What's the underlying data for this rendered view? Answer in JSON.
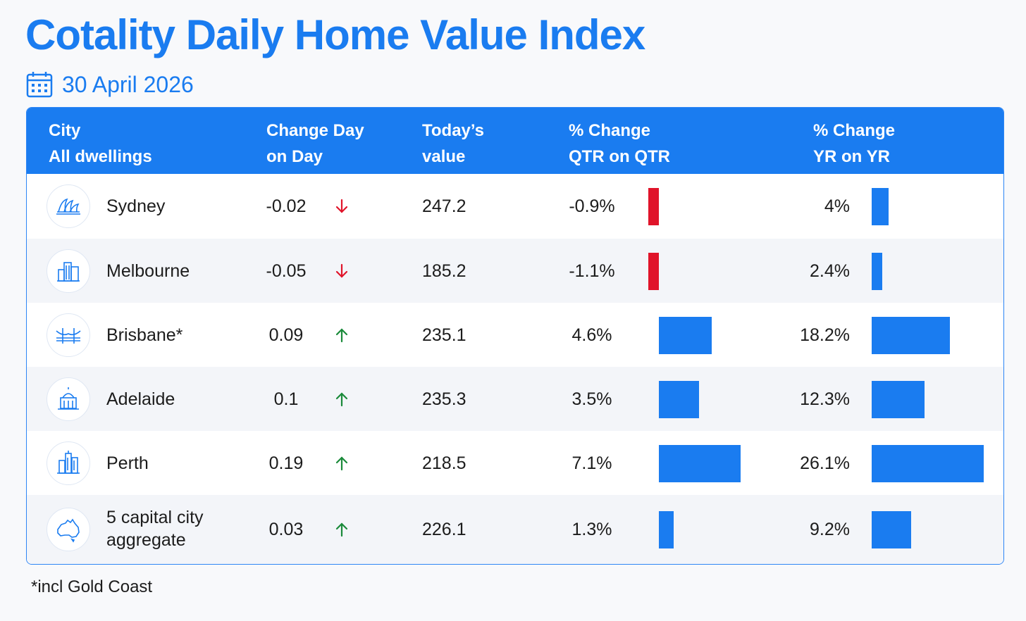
{
  "title": "Cotality Daily Home Value Index",
  "date": "30 April 2026",
  "headers": {
    "city": [
      "City",
      "All dwellings"
    ],
    "dod": [
      "Change Day",
      "on Day"
    ],
    "value": [
      "Today’s",
      "value"
    ],
    "qtr": [
      "% Change",
      "QTR on QTR"
    ],
    "yr": [
      "% Change",
      "YR on YR"
    ]
  },
  "rows": [
    {
      "city": "Sydney",
      "dod": "-0.02",
      "dir": "down",
      "value": "247.2",
      "qtr": "-0.9%",
      "yr": "4%",
      "icon": "opera-house-icon"
    },
    {
      "city": "Melbourne",
      "dod": "-0.05",
      "dir": "down",
      "value": "185.2",
      "qtr": "-1.1%",
      "yr": "2.4%",
      "icon": "skyline-icon"
    },
    {
      "city": "Brisbane*",
      "dod": "0.09",
      "dir": "up",
      "value": "235.1",
      "qtr": "4.6%",
      "yr": "18.2%",
      "icon": "bridge-icon"
    },
    {
      "city": "Adelaide",
      "dod": "0.1",
      "dir": "up",
      "value": "235.3",
      "qtr": "3.5%",
      "yr": "12.3%",
      "icon": "dome-building-icon"
    },
    {
      "city": "Perth",
      "dod": "0.19",
      "dir": "up",
      "value": "218.5",
      "qtr": "7.1%",
      "yr": "26.1%",
      "icon": "towers-icon"
    },
    {
      "city": "5 capital city aggregate",
      "dod": "0.03",
      "dir": "up",
      "value": "226.1",
      "qtr": "1.3%",
      "yr": "9.2%",
      "icon": "australia-map-icon"
    }
  ],
  "footnote": "*incl Gold Coast",
  "colors": {
    "accent": "#1a7cf0",
    "negative": "#e0142a",
    "up_arrow": "#1a8a3a",
    "down_arrow": "#e0142a"
  },
  "chart_data": {
    "type": "table",
    "categories": [
      "Sydney",
      "Melbourne",
      "Brisbane*",
      "Adelaide",
      "Perth",
      "5 capital city aggregate"
    ],
    "series": [
      {
        "name": "Change Day on Day",
        "values": [
          -0.02,
          -0.05,
          0.09,
          0.1,
          0.19,
          0.03
        ]
      },
      {
        "name": "Today’s value",
        "values": [
          247.2,
          185.2,
          235.1,
          235.3,
          218.5,
          226.1
        ]
      },
      {
        "name": "% Change QTR on QTR",
        "values": [
          -0.9,
          -1.1,
          4.6,
          3.5,
          7.1,
          1.3
        ]
      },
      {
        "name": "% Change YR on YR",
        "values": [
          4,
          2.4,
          18.2,
          12.3,
          26.1,
          9.2
        ]
      }
    ]
  }
}
